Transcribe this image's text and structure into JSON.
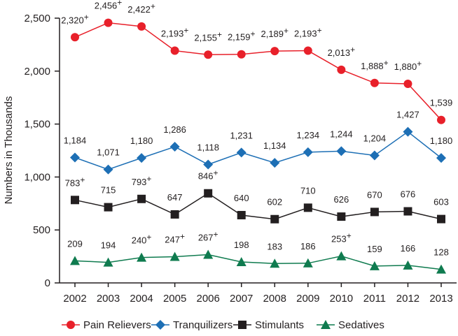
{
  "chart_data": {
    "type": "line",
    "title": "",
    "xlabel": "",
    "ylabel": "Numbers in Thousands",
    "ylim": [
      0,
      2500
    ],
    "yticks": [
      0,
      500,
      1000,
      1500,
      2000,
      2500
    ],
    "ytick_labels": [
      "0",
      "500",
      "1,000",
      "1,500",
      "2,000",
      "2,500"
    ],
    "grid": false,
    "legend_position": "bottom",
    "x": [
      "2002",
      "2003",
      "2004",
      "2005",
      "2006",
      "2007",
      "2008",
      "2009",
      "2010",
      "2011",
      "2012",
      "2013"
    ],
    "series": [
      {
        "name": "Pain Relievers",
        "color": "#e8202a",
        "marker": "circle",
        "values": [
          2320,
          2456,
          2422,
          2193,
          2155,
          2159,
          2189,
          2193,
          2013,
          1888,
          1880,
          1539
        ],
        "labels": [
          "2,320+",
          "2,456+",
          "2,422+",
          "2,193+",
          "2,155+",
          "2,159+",
          "2,189+",
          "2,193+",
          "2,013+",
          "1,888+",
          "1,880+",
          "1,539"
        ]
      },
      {
        "name": "Tranquilizers",
        "color": "#1d6fb5",
        "marker": "diamond",
        "values": [
          1184,
          1071,
          1180,
          1286,
          1118,
          1231,
          1134,
          1234,
          1244,
          1204,
          1427,
          1180
        ],
        "labels": [
          "1,184",
          "1,071",
          "1,180",
          "1,286",
          "1,118",
          "1,231",
          "1,134",
          "1,234",
          "1,244",
          "1,204",
          "1,427",
          "1,180"
        ]
      },
      {
        "name": "Stimulants",
        "color": "#231f20",
        "marker": "square",
        "values": [
          783,
          715,
          793,
          647,
          846,
          640,
          602,
          710,
          626,
          670,
          676,
          603
        ],
        "labels": [
          "783+",
          "715",
          "793+",
          "647",
          "846+",
          "640",
          "602",
          "710",
          "626",
          "670",
          "676",
          "603"
        ]
      },
      {
        "name": "Sedatives",
        "color": "#0f7b4f",
        "marker": "triangle",
        "values": [
          209,
          194,
          240,
          247,
          267,
          198,
          183,
          186,
          253,
          159,
          166,
          128
        ],
        "labels": [
          "209",
          "194",
          "240+",
          "247+",
          "267+",
          "198",
          "183",
          "186",
          "253+",
          "159",
          "166",
          "128"
        ]
      }
    ]
  }
}
